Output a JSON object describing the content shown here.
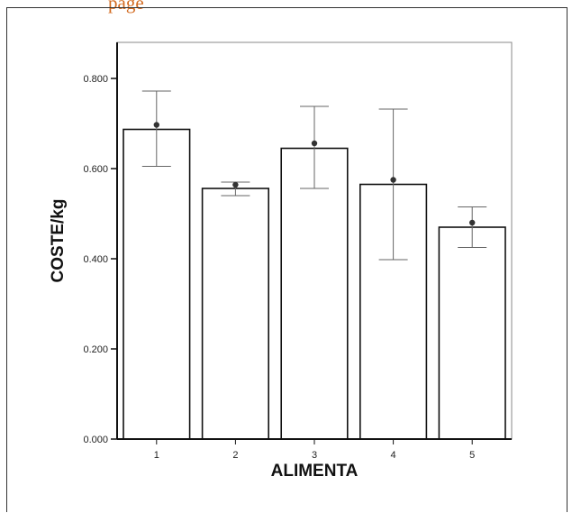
{
  "header": {
    "text": "page"
  },
  "chart_data": {
    "type": "bar",
    "xlabel": "ALIMENTA",
    "ylabel": "COSTE/kg",
    "categories": [
      "1",
      "2",
      "3",
      "4",
      "5"
    ],
    "ylim": [
      0,
      0.8
    ],
    "yticks": [
      "0.000",
      "0.200",
      "0.400",
      "0.600",
      "0.800"
    ],
    "series": [
      {
        "values": [
          0.687,
          0.556,
          0.645,
          0.565,
          0.47
        ],
        "means": [
          0.697,
          0.564,
          0.656,
          0.575,
          0.48
        ],
        "error_low": [
          0.605,
          0.54,
          0.556,
          0.398,
          0.425
        ],
        "error_high": [
          0.772,
          0.57,
          0.738,
          0.732,
          0.515
        ]
      }
    ],
    "colors": {
      "bar_fill": "#ffffff",
      "stroke": "#111111",
      "error_bar": "#666666",
      "marker": "#333333"
    }
  }
}
